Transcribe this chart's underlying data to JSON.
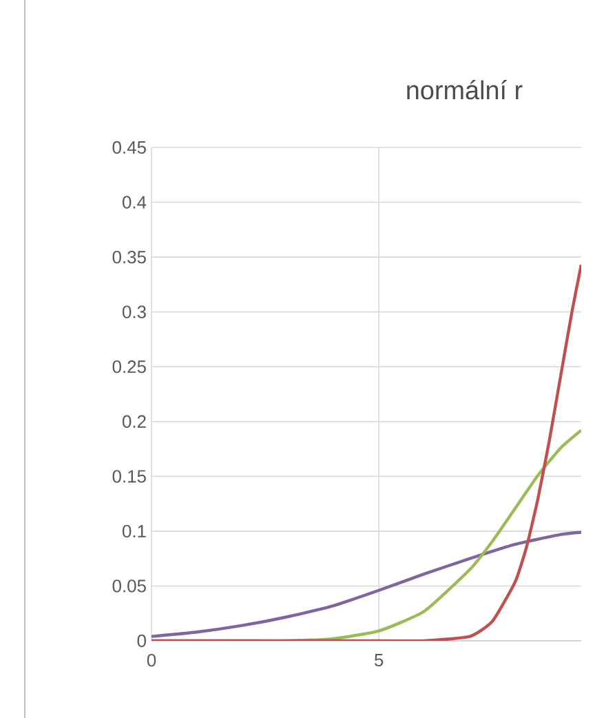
{
  "chart_data": {
    "type": "line",
    "title": "normální r",
    "xlim": [
      0,
      9.45
    ],
    "xticks": [
      0,
      5
    ],
    "ylim": [
      0,
      0.45
    ],
    "yticks": [
      0,
      0.05,
      0.1,
      0.15,
      0.2,
      0.25,
      0.3,
      0.35,
      0.4,
      0.45
    ],
    "grid": true,
    "series": [
      {
        "color": "#8064a2",
        "x": [
          0,
          1,
          2,
          3,
          4,
          5,
          6,
          7,
          8,
          9,
          9.45
        ],
        "values": [
          0.004,
          0.008,
          0.014,
          0.022,
          0.032,
          0.046,
          0.061,
          0.075,
          0.088,
          0.097,
          0.099
        ]
      },
      {
        "color": "#9bbb59",
        "x": [
          0,
          2,
          3,
          4,
          5,
          6,
          7,
          7.5,
          8,
          8.5,
          9,
          9.45
        ],
        "values": [
          0,
          0,
          0,
          0.002,
          0.009,
          0.027,
          0.065,
          0.091,
          0.121,
          0.151,
          0.176,
          0.192
        ]
      },
      {
        "color": "#c0504d",
        "x": [
          0,
          5,
          6,
          7,
          7.5,
          8,
          8.25,
          8.5,
          8.75,
          9,
          9.25,
          9.45
        ],
        "values": [
          0,
          0,
          0,
          0.004,
          0.018,
          0.054,
          0.086,
          0.13,
          0.183,
          0.242,
          0.301,
          0.343
        ]
      }
    ]
  }
}
